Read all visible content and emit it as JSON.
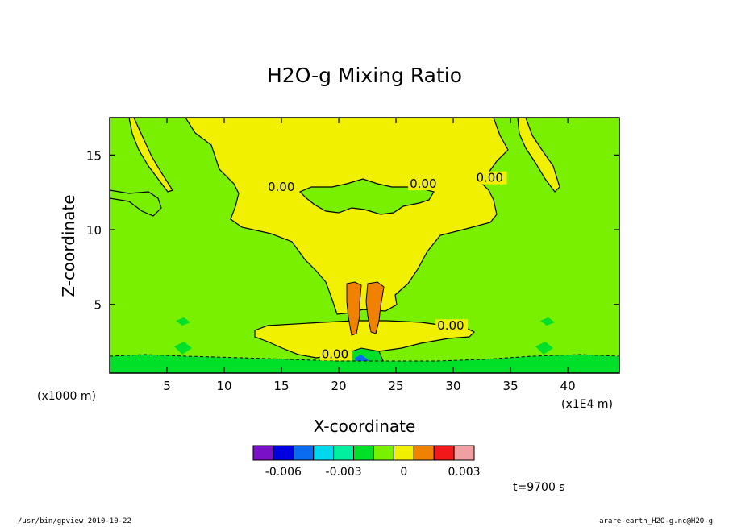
{
  "chart_data": {
    "type": "contour",
    "title": "H2O-g Mixing Ratio",
    "xlabel": "X-coordinate",
    "ylabel": "Z-coordinate",
    "x_unit": "(x1E4 m)",
    "y_unit": "(x1000 m)",
    "xlim": [
      0,
      44.5
    ],
    "ylim": [
      0.4,
      17.5
    ],
    "x_ticks": [
      5,
      10,
      15,
      20,
      25,
      30,
      35,
      40
    ],
    "y_ticks": [
      5,
      10,
      15
    ],
    "contour_labels": [
      {
        "text": "0.00",
        "x": 13.8,
        "z": 12.6
      },
      {
        "text": "0.00",
        "x": 26.2,
        "z": 12.8
      },
      {
        "text": "0.00",
        "x": 32.0,
        "z": 13.2
      },
      {
        "text": "0.00",
        "x": 28.6,
        "z": 3.3
      },
      {
        "text": "0.00",
        "x": 18.5,
        "z": 1.4
      }
    ],
    "colorbar": {
      "colors": [
        "#7a10c8",
        "#0000e0",
        "#0a6cf0",
        "#00d8f0",
        "#00f0a0",
        "#00e028",
        "#78f000",
        "#f0f000",
        "#f08200",
        "#f01818",
        "#f0a0a0"
      ],
      "tick_labels": [
        "-0.006",
        "-0.003",
        "0",
        "0.003"
      ],
      "tick_values": [
        -0.006,
        -0.003,
        0,
        0.003
      ],
      "min": -0.0075,
      "max": 0.0035
    },
    "annotation": "t=9700 s"
  },
  "footer": {
    "left": "/usr/bin/gpview   2010-10-22",
    "right": "arare-earth_H2O-g.nc@H2O-g"
  }
}
